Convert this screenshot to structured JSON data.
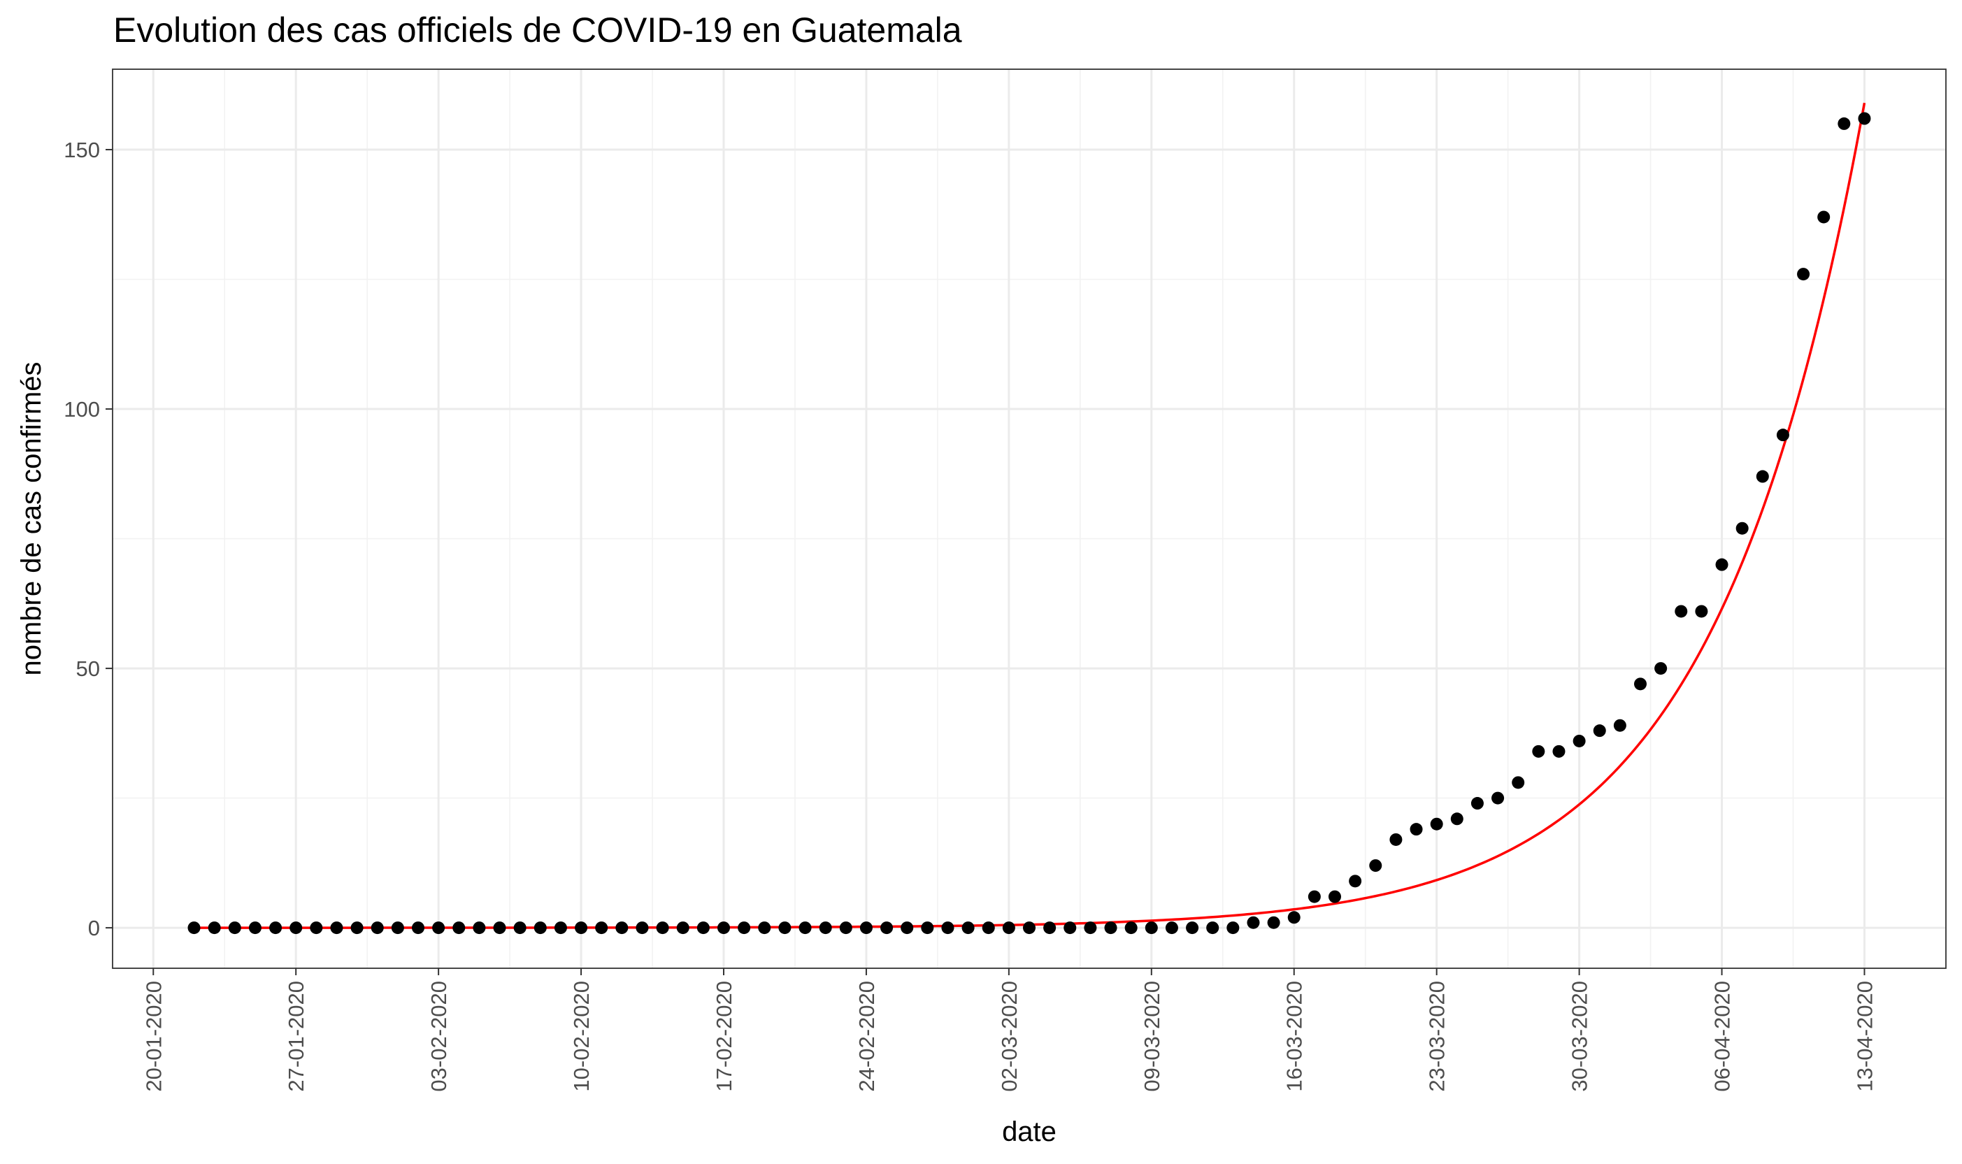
{
  "chart_data": {
    "type": "scatter",
    "title": "Evolution des cas officiels de COVID-19 en Guatemala",
    "xlabel": "date",
    "ylabel": "nombre de cas confirmés",
    "x_start_date": "2020-01-22",
    "x": [
      "22-01-2020",
      "23-01-2020",
      "24-01-2020",
      "25-01-2020",
      "26-01-2020",
      "27-01-2020",
      "28-01-2020",
      "29-01-2020",
      "30-01-2020",
      "31-01-2020",
      "01-02-2020",
      "02-02-2020",
      "03-02-2020",
      "04-02-2020",
      "05-02-2020",
      "06-02-2020",
      "07-02-2020",
      "08-02-2020",
      "09-02-2020",
      "10-02-2020",
      "11-02-2020",
      "12-02-2020",
      "13-02-2020",
      "14-02-2020",
      "15-02-2020",
      "16-02-2020",
      "17-02-2020",
      "18-02-2020",
      "19-02-2020",
      "20-02-2020",
      "21-02-2020",
      "22-02-2020",
      "23-02-2020",
      "24-02-2020",
      "25-02-2020",
      "26-02-2020",
      "27-02-2020",
      "28-02-2020",
      "29-02-2020",
      "01-03-2020",
      "02-03-2020",
      "03-03-2020",
      "04-03-2020",
      "05-03-2020",
      "06-03-2020",
      "07-03-2020",
      "08-03-2020",
      "09-03-2020",
      "10-03-2020",
      "11-03-2020",
      "12-03-2020",
      "13-03-2020",
      "14-03-2020",
      "15-03-2020",
      "16-03-2020",
      "17-03-2020",
      "18-03-2020",
      "19-03-2020",
      "20-03-2020",
      "21-03-2020",
      "22-03-2020",
      "23-03-2020",
      "24-03-2020",
      "25-03-2020",
      "26-03-2020",
      "27-03-2020",
      "28-03-2020",
      "29-03-2020",
      "30-03-2020",
      "31-03-2020",
      "01-04-2020",
      "02-04-2020",
      "03-04-2020",
      "04-04-2020",
      "05-04-2020",
      "06-04-2020",
      "07-04-2020",
      "08-04-2020",
      "09-04-2020",
      "10-04-2020",
      "11-04-2020",
      "12-04-2020",
      "13-04-2020"
    ],
    "series": [
      {
        "name": "cas confirmés",
        "color": "#000000",
        "values": [
          0,
          0,
          0,
          0,
          0,
          0,
          0,
          0,
          0,
          0,
          0,
          0,
          0,
          0,
          0,
          0,
          0,
          0,
          0,
          0,
          0,
          0,
          0,
          0,
          0,
          0,
          0,
          0,
          0,
          0,
          0,
          0,
          0,
          0,
          0,
          0,
          0,
          0,
          0,
          0,
          0,
          0,
          0,
          0,
          0,
          0,
          0,
          0,
          0,
          0,
          0,
          0,
          1,
          1,
          2,
          6,
          6,
          9,
          12,
          17,
          19,
          20,
          21,
          24,
          25,
          28,
          34,
          34,
          36,
          38,
          39,
          47,
          50,
          61,
          61,
          70,
          77,
          87,
          95,
          126,
          137,
          155,
          156
        ]
      }
    ],
    "fit": {
      "type": "exponential",
      "color": "#ff0000",
      "start_value": 0.00233,
      "end_value": 159
    },
    "xticks": [
      "20-01-2020",
      "27-01-2020",
      "03-02-2020",
      "10-02-2020",
      "17-02-2020",
      "24-02-2020",
      "02-03-2020",
      "09-03-2020",
      "16-03-2020",
      "23-03-2020",
      "30-03-2020",
      "06-04-2020",
      "13-04-2020"
    ],
    "yticks": [
      "0",
      "50",
      "100",
      "150"
    ],
    "xlim": [
      "2020-01-18",
      "2020-04-17"
    ],
    "ylim": [
      -7.8,
      165.5
    ],
    "grid": true,
    "legend": "none"
  }
}
